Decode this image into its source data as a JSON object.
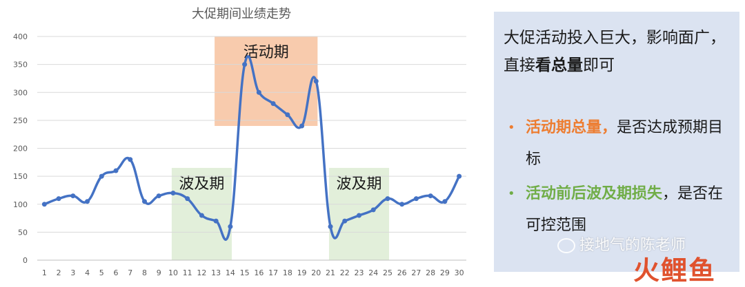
{
  "chart_data": {
    "type": "line",
    "title": "大促期间业绩走势",
    "x": [
      1,
      2,
      3,
      4,
      5,
      6,
      7,
      8,
      9,
      10,
      11,
      12,
      13,
      14,
      15,
      16,
      17,
      18,
      19,
      20,
      21,
      22,
      23,
      24,
      25,
      26,
      27,
      28,
      29,
      30
    ],
    "series": [
      {
        "values": [
          100,
          110,
          115,
          105,
          150,
          160,
          180,
          105,
          115,
          120,
          110,
          80,
          70,
          60,
          350,
          300,
          280,
          260,
          240,
          320,
          60,
          70,
          80,
          90,
          110,
          100,
          110,
          115,
          105,
          150
        ]
      }
    ],
    "ylim": [
      0,
      400
    ],
    "yticks": [
      0,
      50,
      100,
      150,
      200,
      250,
      300,
      350,
      400
    ],
    "grid": true,
    "line_color": "#4472c4",
    "regions": [
      {
        "label": "活动期",
        "x_start": 13,
        "x_end": 20,
        "y_low": 240,
        "y_high": 400,
        "color": "#f8cbad"
      },
      {
        "label": "波及期",
        "x_start": 10,
        "x_end": 14,
        "y_low": 0,
        "y_high": 165,
        "color": "#e2efda"
      },
      {
        "label": "波及期",
        "x_start": 21,
        "x_end": 25,
        "y_low": 0,
        "y_high": 165,
        "color": "#e2efda"
      }
    ]
  },
  "panel": {
    "intro_before": "大促活动投入巨大，影响面广，直接",
    "intro_bold": "看总量",
    "intro_after": "即可",
    "bullets": [
      {
        "dot": "•",
        "highlight": "活动期总量，",
        "rest": "是否达成预期目标",
        "color": "#ed7d31"
      },
      {
        "dot": "•",
        "highlight": "活动前后波及期损失",
        "rest": "，是否在可控范围",
        "color": "#70ad47"
      }
    ]
  },
  "watermark": {
    "text": "接地气的陈老师"
  },
  "logo": {
    "text": "火鲤鱼"
  }
}
